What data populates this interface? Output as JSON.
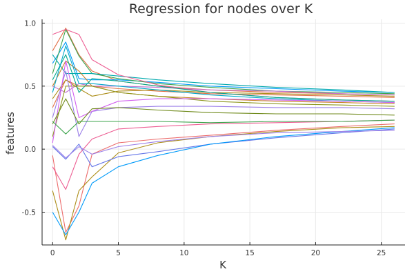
{
  "chart_data": {
    "type": "line",
    "title": "Regression for nodes over K",
    "xlabel": "K",
    "ylabel": "features",
    "xlim": [
      -0.8,
      26.8
    ],
    "ylim": [
      -0.76,
      1.03
    ],
    "xticks": [
      0,
      5,
      10,
      15,
      20,
      25
    ],
    "xtick_labels": [
      "0",
      "5",
      "10",
      "15",
      "20",
      "25"
    ],
    "yticks": [
      -0.5,
      0.0,
      0.5,
      1.0
    ],
    "ytick_labels": [
      "-0.5",
      "0.0",
      "0.5",
      "1.0"
    ],
    "grid": true,
    "legend": "none",
    "series": [
      {
        "color": "#e26f46",
        "x": [
          0,
          1,
          2,
          3,
          5,
          8,
          12,
          17,
          22,
          26
        ],
        "y": [
          0.78,
          0.96,
          0.75,
          0.62,
          0.54,
          0.5,
          0.47,
          0.45,
          0.44,
          0.43
        ]
      },
      {
        "color": "#009af9",
        "x": [
          0,
          1,
          2,
          3,
          5,
          8,
          12,
          17,
          22,
          26
        ],
        "y": [
          0.68,
          0.85,
          0.56,
          0.55,
          0.55,
          0.53,
          0.5,
          0.48,
          0.46,
          0.45
        ]
      },
      {
        "color": "#e26f46",
        "x": [
          0,
          1,
          2,
          3,
          5,
          8,
          12,
          17,
          22,
          26
        ],
        "y": [
          0.33,
          0.55,
          0.5,
          0.5,
          0.48,
          0.46,
          0.44,
          0.43,
          0.42,
          0.41
        ]
      },
      {
        "color": "#3da44d",
        "x": [
          0,
          1,
          2,
          3,
          5,
          8,
          12,
          17,
          22,
          26
        ],
        "y": [
          0.6,
          0.95,
          0.74,
          0.6,
          0.56,
          0.52,
          0.49,
          0.46,
          0.45,
          0.44
        ]
      },
      {
        "color": "#c271d2",
        "x": [
          0,
          1,
          2,
          3,
          5,
          8,
          12,
          17,
          22,
          26
        ],
        "y": [
          0.5,
          0.45,
          0.52,
          0.5,
          0.5,
          0.49,
          0.47,
          0.46,
          0.44,
          0.43
        ]
      },
      {
        "color": "#ac8d18",
        "x": [
          0,
          1,
          2,
          3,
          5,
          8,
          12,
          17,
          22,
          26
        ],
        "y": [
          0.4,
          0.55,
          0.48,
          0.42,
          0.46,
          0.47,
          0.45,
          0.44,
          0.43,
          0.42
        ]
      },
      {
        "color": "#00a9ad",
        "x": [
          0,
          1,
          2,
          3,
          5,
          8,
          12,
          17,
          22,
          26
        ],
        "y": [
          0.75,
          0.6,
          0.6,
          0.6,
          0.58,
          0.55,
          0.52,
          0.49,
          0.47,
          0.45
        ]
      },
      {
        "color": "#ed5e93",
        "x": [
          0,
          1,
          2,
          3,
          5,
          8,
          12,
          17,
          22,
          26
        ],
        "y": [
          0.91,
          0.95,
          0.91,
          0.71,
          0.59,
          0.51,
          0.45,
          0.41,
          0.39,
          0.38
        ]
      },
      {
        "color": "#c68225",
        "x": [
          0,
          1,
          2,
          3,
          5,
          8,
          12,
          17,
          22,
          26
        ],
        "y": [
          0.5,
          0.7,
          0.62,
          0.5,
          0.45,
          0.42,
          0.4,
          0.38,
          0.37,
          0.36
        ]
      },
      {
        "color": "#00a98d",
        "x": [
          0,
          1,
          2,
          3,
          5,
          8,
          12,
          17,
          22,
          26
        ],
        "y": [
          0.55,
          0.75,
          0.45,
          0.56,
          0.54,
          0.5,
          0.45,
          0.41,
          0.39,
          0.38
        ]
      },
      {
        "color": "#8e971d",
        "x": [
          0,
          1,
          2,
          3,
          5,
          8,
          12,
          17,
          22,
          26
        ],
        "y": [
          0.1,
          0.5,
          0.5,
          0.5,
          0.45,
          0.42,
          0.38,
          0.36,
          0.35,
          0.34
        ]
      },
      {
        "color": "#00a8cb",
        "x": [
          0,
          1,
          2,
          3,
          5,
          8,
          12,
          17,
          22,
          26
        ],
        "y": [
          0.45,
          0.82,
          0.52,
          0.52,
          0.5,
          0.47,
          0.43,
          0.4,
          0.38,
          0.37
        ]
      },
      {
        "color": "#9b7fe8",
        "x": [
          0,
          1,
          2,
          3,
          5,
          8,
          12,
          17,
          22,
          26
        ],
        "y": [
          0.25,
          0.62,
          0.1,
          0.3,
          0.33,
          0.34,
          0.34,
          0.33,
          0.33,
          0.32
        ]
      },
      {
        "color": "#d15fee",
        "x": [
          0,
          1,
          2,
          3,
          5,
          8,
          12,
          17,
          22,
          26
        ],
        "y": [
          0.05,
          0.7,
          0.25,
          0.3,
          0.38,
          0.4,
          0.4,
          0.39,
          0.38,
          0.37
        ]
      },
      {
        "color": "#ec6b6b",
        "x": [
          0,
          1,
          2,
          3,
          5,
          8,
          12,
          17,
          22,
          26
        ],
        "y": [
          -0.05,
          -0.66,
          -0.45,
          -0.04,
          0.05,
          0.08,
          0.11,
          0.15,
          0.18,
          0.2
        ]
      },
      {
        "color": "#6f8a1b",
        "x": [
          0,
          1,
          2,
          3,
          5,
          8,
          12,
          17,
          22,
          26
        ],
        "y": [
          0.2,
          0.4,
          0.2,
          0.32,
          0.33,
          0.31,
          0.29,
          0.28,
          0.28,
          0.27
        ]
      },
      {
        "color": "#ac8d18",
        "x": [
          0,
          1,
          2,
          3,
          5,
          8,
          12,
          17,
          22,
          26
        ],
        "y": [
          -0.33,
          -0.72,
          -0.33,
          -0.22,
          -0.03,
          0.05,
          0.1,
          0.14,
          0.17,
          0.18
        ]
      },
      {
        "color": "#6677e8",
        "x": [
          0,
          1,
          2,
          3,
          5,
          8,
          12,
          17,
          22,
          26
        ],
        "y": [
          0.02,
          -0.08,
          0.04,
          -0.14,
          -0.06,
          -0.02,
          0.04,
          0.09,
          0.13,
          0.16
        ]
      },
      {
        "color": "#ed5e93",
        "x": [
          0,
          1,
          2,
          3,
          5,
          8,
          12,
          17,
          22,
          26
        ],
        "y": [
          -0.14,
          -0.32,
          -0.04,
          0.08,
          0.16,
          0.18,
          0.2,
          0.21,
          0.22,
          0.23
        ]
      },
      {
        "color": "#009af9",
        "x": [
          0,
          1,
          2,
          3,
          5,
          8,
          12,
          17,
          22,
          26
        ],
        "y": [
          -0.5,
          -0.68,
          -0.5,
          -0.27,
          -0.14,
          -0.05,
          0.04,
          0.1,
          0.14,
          0.17
        ]
      },
      {
        "color": "#3da44d",
        "x": [
          0,
          1,
          2,
          3,
          5,
          8,
          12,
          17,
          22,
          26
        ],
        "y": [
          0.22,
          0.12,
          0.22,
          0.22,
          0.22,
          0.22,
          0.21,
          0.22,
          0.22,
          0.23
        ]
      },
      {
        "color": "#9b7fe8",
        "x": [
          0,
          1,
          2,
          3,
          5,
          8,
          12,
          17,
          22,
          26
        ],
        "y": [
          0.03,
          -0.07,
          0.02,
          -0.04,
          0.02,
          0.06,
          0.1,
          0.13,
          0.14,
          0.15
        ]
      }
    ]
  }
}
